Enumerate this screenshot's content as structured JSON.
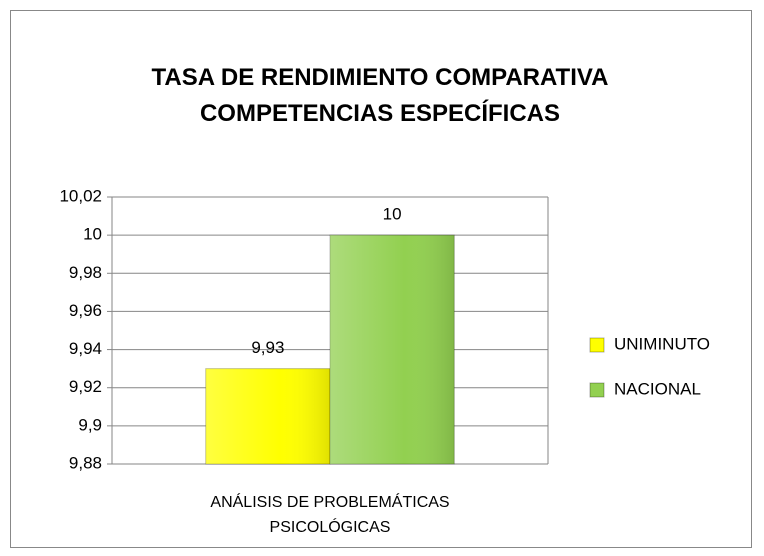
{
  "chart_data": {
    "type": "bar",
    "title": "TASA DE RENDIMIENTO COMPARATIVA COMPETENCIAS ESPECÍFICAS",
    "categories": [
      "ANÁLISIS DE PROBLEMÁTICAS PSICOLÓGICAS"
    ],
    "series": [
      {
        "name": "UNIMINUTO",
        "color": "#ffff00",
        "values": [
          9.93
        ],
        "value_labels": [
          "9,93"
        ]
      },
      {
        "name": "NACIONAL",
        "color": "#92d050",
        "values": [
          10
        ]
      }
    ],
    "ylim": [
      9.88,
      10.02
    ],
    "yticks": [
      {
        "value": 9.88,
        "label": "9,88"
      },
      {
        "value": 9.9,
        "label": "9,9"
      },
      {
        "value": 9.92,
        "label": "9,92"
      },
      {
        "value": 9.94,
        "label": "9,94"
      },
      {
        "value": 9.96,
        "label": "9,96"
      },
      {
        "value": 9.98,
        "label": "9,98"
      },
      10,
      {
        "value": 10.02,
        "label": "10,02"
      }
    ],
    "grid": true,
    "legend": "right"
  }
}
